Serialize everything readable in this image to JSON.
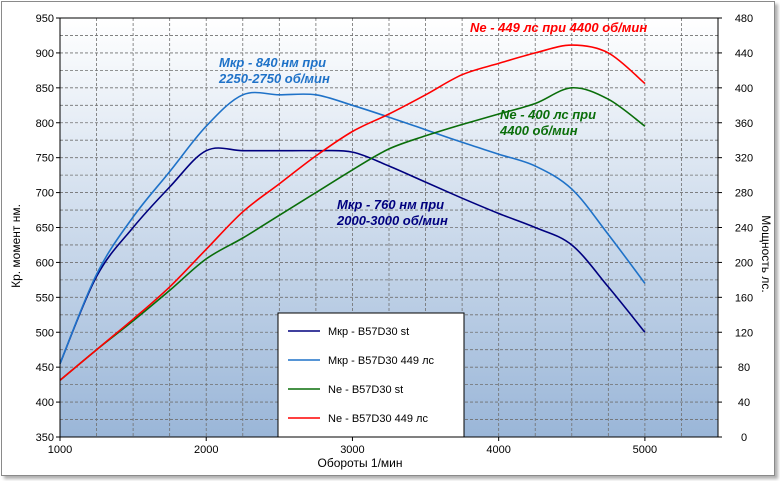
{
  "chart_data": {
    "type": "line",
    "xlabel": "Обороты  1/мин",
    "ylabel_left": "Кр. момент  нм.",
    "ylabel_right": "Мощность  лс.",
    "xlim": [
      1000,
      5500
    ],
    "ylim_left": [
      350,
      950
    ],
    "ylim_right": [
      0,
      480
    ],
    "x_ticks": [
      "1000",
      "2000",
      "3000",
      "4000",
      "5000"
    ],
    "y_left_ticks": [
      "350",
      "400",
      "450",
      "500",
      "550",
      "600",
      "650",
      "700",
      "750",
      "800",
      "850",
      "900",
      "950"
    ],
    "y_right_ticks": [
      "0",
      "40",
      "80",
      "120",
      "160",
      "200",
      "240",
      "280",
      "320",
      "360",
      "400",
      "440",
      "480"
    ],
    "grid": true,
    "series": [
      {
        "name": "Мкр - B57D30  st",
        "axis": "left",
        "color": "#00007f",
        "x": [
          1000,
          1250,
          1500,
          1750,
          2000,
          2250,
          2500,
          2750,
          3000,
          3250,
          3500,
          3750,
          4000,
          4250,
          4500,
          4750,
          5000
        ],
        "y": [
          455,
          580,
          650,
          708,
          760,
          760,
          760,
          760,
          758,
          738,
          715,
          692,
          670,
          650,
          625,
          565,
          500
        ]
      },
      {
        "name": "Мкр - B57D30  449  лс",
        "axis": "left",
        "color": "#1f72c8",
        "x": [
          1000,
          1250,
          1500,
          1750,
          2000,
          2250,
          2500,
          2750,
          3000,
          3250,
          3500,
          3750,
          4000,
          4250,
          4500,
          4750,
          5000
        ],
        "y": [
          455,
          583,
          665,
          730,
          795,
          840,
          840,
          840,
          825,
          808,
          790,
          772,
          755,
          738,
          705,
          640,
          570
        ]
      },
      {
        "name": "Ne  -  B57D30  st",
        "axis": "right",
        "color": "#0a6e0a",
        "x": [
          1000,
          1250,
          1500,
          1750,
          2000,
          2250,
          2500,
          2750,
          3000,
          3250,
          3500,
          3750,
          4000,
          4250,
          4500,
          4750,
          5000
        ],
        "y": [
          65,
          100,
          133,
          168,
          204,
          228,
          254,
          280,
          306,
          330,
          345,
          358,
          370,
          382,
          400,
          387,
          356
        ]
      },
      {
        "name": "Ne  -  B57D30  449   лс",
        "axis": "right",
        "color": "#ff0000",
        "x": [
          1000,
          1250,
          1500,
          1750,
          2000,
          2250,
          2500,
          2750,
          3000,
          3250,
          3500,
          3750,
          4000,
          4250,
          4500,
          4750,
          5000
        ],
        "y": [
          65,
          100,
          135,
          172,
          215,
          258,
          290,
          322,
          350,
          370,
          392,
          415,
          428,
          440,
          449,
          440,
          405
        ]
      }
    ],
    "annotations": [
      {
        "line1": "Мкр - 840 нм при",
        "line2": "2250-2750 об/мин",
        "color": "#1f72c8"
      },
      {
        "line1": "Ne - 449 лс при 4400 об/мин",
        "line2": "",
        "color": "#ff0000"
      },
      {
        "line1": "Ne - 400 лс при",
        "line2": "4400 об/мин",
        "color": "#0a6e0a"
      },
      {
        "line1": "Мкр - 760 нм при",
        "line2": "2000-3000 об/мин",
        "color": "#00007f"
      }
    ],
    "legend_position": "bottom-center"
  }
}
